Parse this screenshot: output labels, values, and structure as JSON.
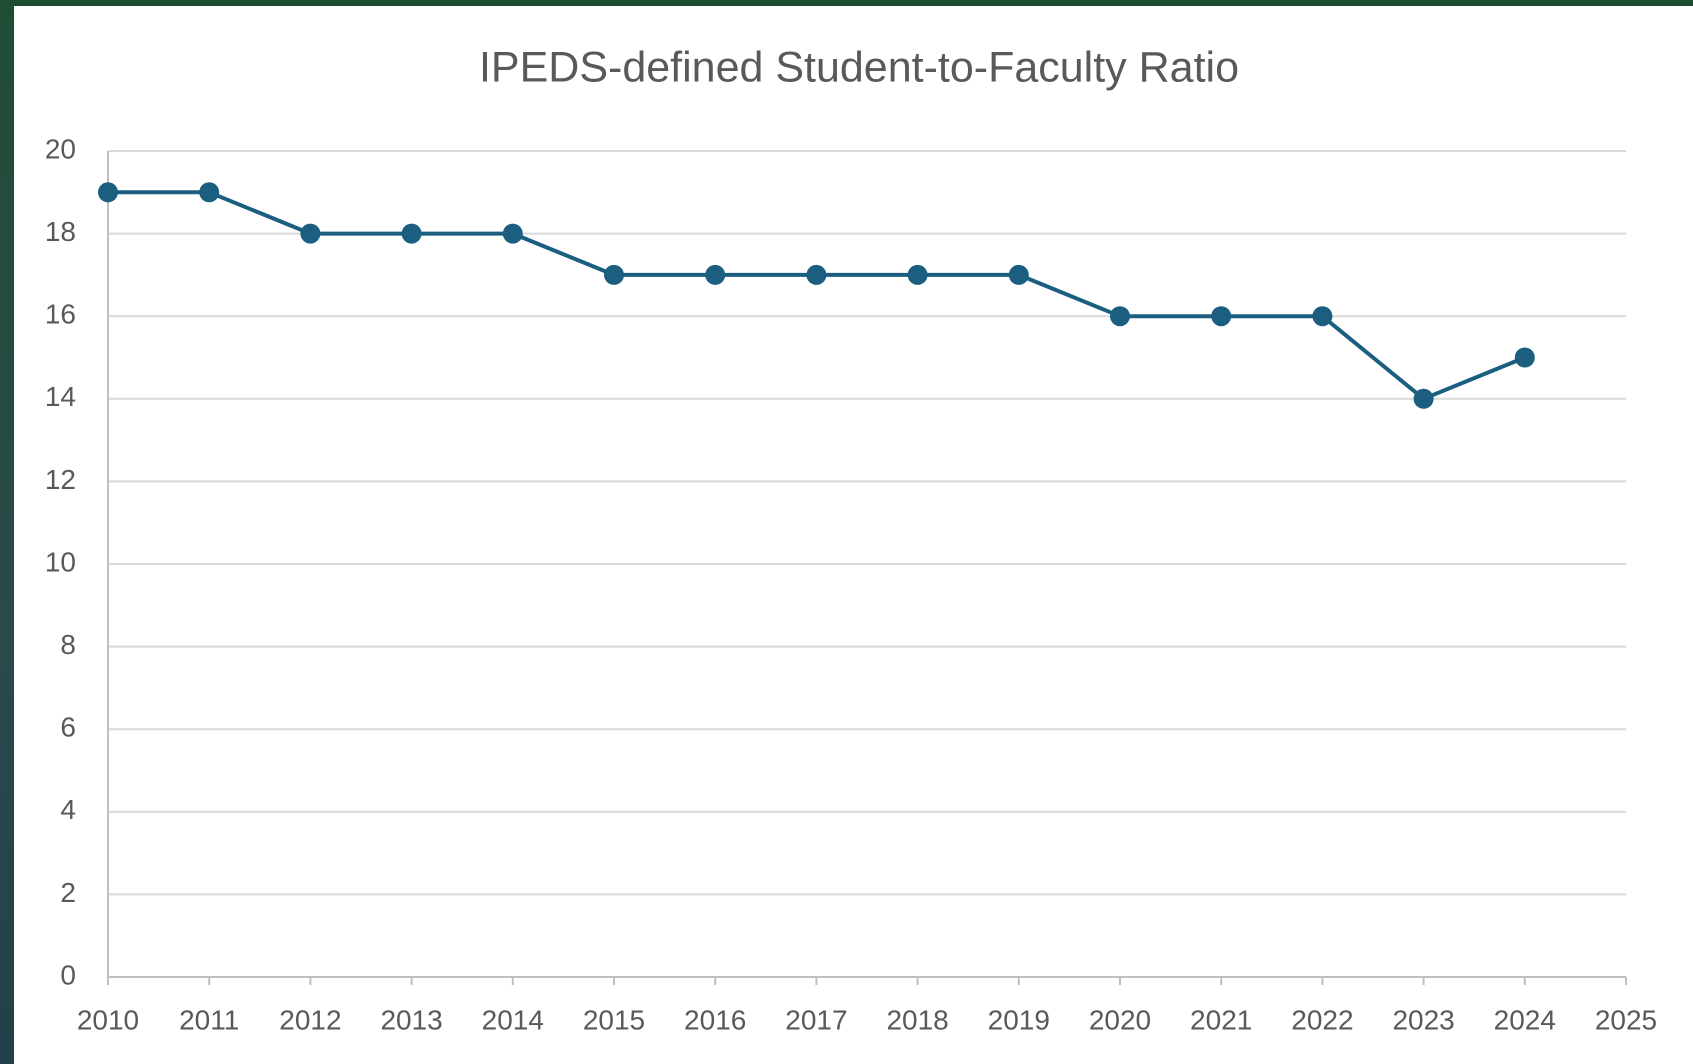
{
  "chart_data": {
    "type": "line",
    "title": "IPEDS-defined Student-to-Faculty Ratio",
    "x": [
      2010,
      2011,
      2012,
      2013,
      2014,
      2015,
      2016,
      2017,
      2018,
      2019,
      2020,
      2021,
      2022,
      2023,
      2024
    ],
    "series": [
      {
        "name": "Student-to-Faculty Ratio",
        "color": "#1b5e80",
        "values": [
          19,
          19,
          18,
          18,
          18,
          17,
          17,
          17,
          17,
          17,
          16,
          16,
          16,
          14,
          15
        ]
      }
    ],
    "xlim": [
      2010,
      2025
    ],
    "xticks": [
      2010,
      2011,
      2012,
      2013,
      2014,
      2015,
      2016,
      2017,
      2018,
      2019,
      2020,
      2021,
      2022,
      2023,
      2024,
      2025
    ],
    "ylim": [
      0,
      20
    ],
    "yticks": [
      0,
      2,
      4,
      6,
      8,
      10,
      12,
      14,
      16,
      18,
      20
    ],
    "grid": true,
    "legend": false
  }
}
